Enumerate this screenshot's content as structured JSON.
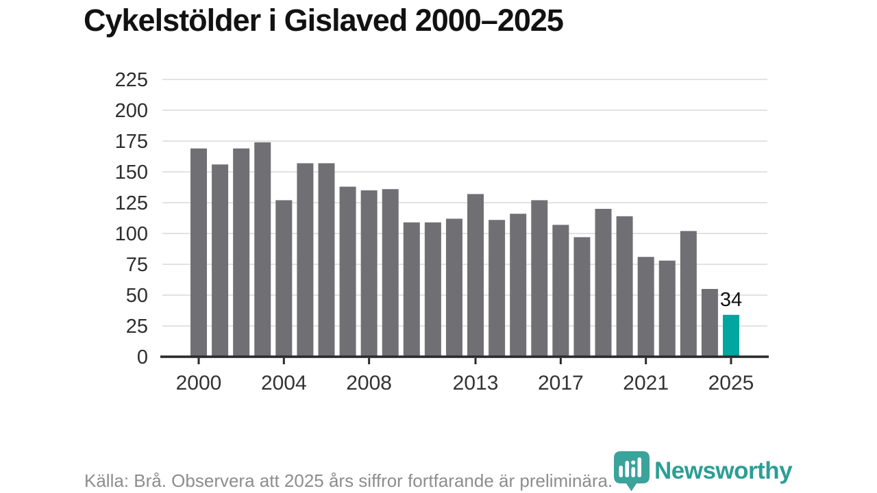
{
  "title": "Cykelstölder i Gislaved 2000–2025",
  "footer": {
    "source_note": "Källa: Brå. Observera att 2025 års siffror fortfarande är preliminära."
  },
  "branding": {
    "name": "Newsworthy",
    "icon": "newsworthy-pin-bar-chart-icon",
    "icon_color": "#3ba39b",
    "text_color": "#2b9e94"
  },
  "chart_data": {
    "type": "bar",
    "title": "Cykelstölder i Gislaved 2000–2025",
    "categories": [
      2000,
      2001,
      2002,
      2003,
      2004,
      2005,
      2006,
      2007,
      2008,
      2009,
      2010,
      2011,
      2012,
      2013,
      2014,
      2015,
      2016,
      2017,
      2018,
      2019,
      2020,
      2021,
      2022,
      2023,
      2024,
      2025
    ],
    "values": [
      169,
      156,
      169,
      174,
      127,
      157,
      157,
      138,
      135,
      136,
      109,
      109,
      112,
      132,
      111,
      116,
      127,
      107,
      97,
      120,
      114,
      81,
      78,
      102,
      55,
      34
    ],
    "highlight_category": 2025,
    "highlight_value_label": "34",
    "colors": {
      "bar": "#707074",
      "highlight_bar": "#00a6a0",
      "gridline": "#e2e2e2",
      "axis": "#2b2b2b",
      "y_tick_label": "#2d2d2d",
      "x_tick_label": "#333333",
      "value_label": "#111111"
    },
    "y_axis": {
      "ticks": [
        0,
        25,
        50,
        75,
        100,
        125,
        150,
        175,
        200,
        225
      ],
      "range": [
        0,
        225
      ],
      "grid": true
    },
    "x_axis": {
      "tick_labels": [
        "2000",
        "2004",
        "2008",
        "2013",
        "2017",
        "2021",
        "2025"
      ]
    },
    "legend": null
  }
}
